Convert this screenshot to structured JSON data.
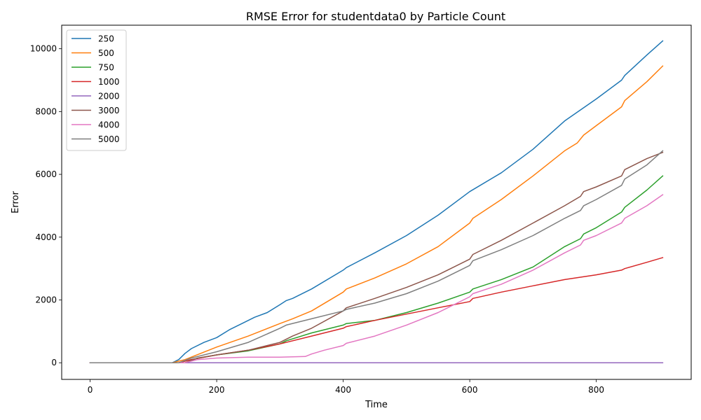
{
  "chart_data": {
    "type": "line",
    "title": "RMSE Error for studentdata0 by Particle Count",
    "xlabel": "Time",
    "ylabel": "Error",
    "xlim": [
      -45,
      950
    ],
    "ylim": [
      -530,
      10750
    ],
    "xticks": [
      0,
      200,
      400,
      600,
      800
    ],
    "yticks": [
      0,
      2000,
      4000,
      6000,
      8000,
      10000
    ],
    "grid": false,
    "legend_position": "top-left",
    "series": [
      {
        "name": "250",
        "color": "#1f77b4",
        "x": [
          0,
          130,
          140,
          150,
          160,
          180,
          200,
          220,
          240,
          260,
          280,
          300,
          310,
          320,
          350,
          400,
          405,
          450,
          500,
          550,
          600,
          650,
          700,
          750,
          800,
          840,
          845,
          880,
          905
        ],
        "y": [
          0,
          0,
          100,
          300,
          450,
          650,
          800,
          1050,
          1250,
          1450,
          1600,
          1850,
          1980,
          2050,
          2350,
          2950,
          3030,
          3500,
          4050,
          4700,
          5450,
          6050,
          6800,
          7700,
          8400,
          9000,
          9150,
          9800,
          10250
        ]
      },
      {
        "name": "500",
        "color": "#ff7f0e",
        "x": [
          0,
          130,
          150,
          200,
          250,
          300,
          320,
          350,
          400,
          405,
          450,
          500,
          550,
          600,
          605,
          650,
          700,
          750,
          770,
          780,
          800,
          840,
          845,
          880,
          905
        ],
        "y": [
          0,
          0,
          100,
          500,
          850,
          1250,
          1400,
          1650,
          2250,
          2350,
          2700,
          3150,
          3700,
          4450,
          4600,
          5200,
          5950,
          6750,
          7000,
          7250,
          7550,
          8150,
          8350,
          8950,
          9450
        ]
      },
      {
        "name": "750",
        "color": "#2ca02c",
        "x": [
          0,
          140,
          160,
          200,
          250,
          300,
          310,
          350,
          400,
          405,
          450,
          500,
          550,
          600,
          605,
          650,
          700,
          750,
          775,
          780,
          800,
          840,
          845,
          880,
          905
        ],
        "y": [
          0,
          0,
          100,
          250,
          380,
          600,
          700,
          950,
          1200,
          1250,
          1350,
          1600,
          1900,
          2250,
          2350,
          2650,
          3050,
          3700,
          3950,
          4100,
          4300,
          4800,
          4950,
          5500,
          5950
        ]
      },
      {
        "name": "1000",
        "color": "#d62728",
        "x": [
          0,
          140,
          160,
          200,
          250,
          300,
          350,
          400,
          405,
          450,
          500,
          550,
          600,
          605,
          650,
          700,
          750,
          800,
          840,
          845,
          880,
          905
        ],
        "y": [
          0,
          0,
          100,
          250,
          400,
          600,
          850,
          1100,
          1150,
          1350,
          1550,
          1750,
          1950,
          2050,
          2250,
          2450,
          2650,
          2800,
          2950,
          3000,
          3200,
          3350
        ]
      },
      {
        "name": "2000",
        "color": "#9467bd",
        "x": [
          0,
          905
        ],
        "y": [
          0,
          0
        ]
      },
      {
        "name": "3000",
        "color": "#8c564b",
        "x": [
          0,
          150,
          170,
          200,
          250,
          300,
          320,
          350,
          400,
          405,
          450,
          500,
          550,
          600,
          605,
          650,
          700,
          750,
          775,
          780,
          800,
          840,
          845,
          880,
          905
        ],
        "y": [
          0,
          0,
          150,
          250,
          400,
          650,
          850,
          1100,
          1650,
          1750,
          2050,
          2400,
          2800,
          3300,
          3450,
          3900,
          4450,
          5000,
          5300,
          5450,
          5600,
          5950,
          6150,
          6500,
          6700
        ]
      },
      {
        "name": "4000",
        "color": "#e377c2",
        "x": [
          0,
          150,
          170,
          200,
          250,
          280,
          300,
          340,
          350,
          370,
          400,
          405,
          450,
          500,
          550,
          600,
          605,
          650,
          700,
          750,
          775,
          780,
          800,
          840,
          845,
          880,
          905
        ],
        "y": [
          0,
          0,
          100,
          150,
          180,
          180,
          180,
          200,
          280,
          400,
          550,
          620,
          850,
          1200,
          1600,
          2100,
          2200,
          2500,
          2950,
          3500,
          3750,
          3900,
          4050,
          4450,
          4600,
          5000,
          5350
        ]
      },
      {
        "name": "5000",
        "color": "#7f7f7f",
        "x": [
          0,
          140,
          160,
          200,
          250,
          300,
          310,
          350,
          400,
          405,
          450,
          500,
          550,
          600,
          605,
          650,
          700,
          750,
          775,
          780,
          800,
          840,
          845,
          880,
          905
        ],
        "y": [
          0,
          0,
          150,
          350,
          650,
          1100,
          1200,
          1400,
          1650,
          1700,
          1900,
          2200,
          2600,
          3100,
          3250,
          3600,
          4050,
          4600,
          4850,
          5000,
          5200,
          5650,
          5850,
          6300,
          6750
        ]
      }
    ]
  }
}
